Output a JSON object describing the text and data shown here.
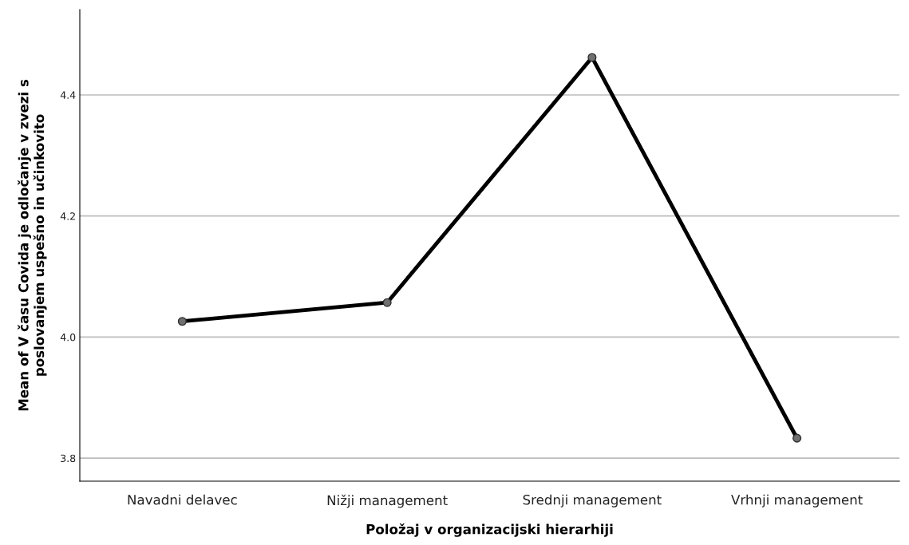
{
  "chart_data": {
    "type": "line",
    "xlabel": "Položaj v organizacijski hierarhiji",
    "ylabel": "Mean of V času Covida je odločanje v zvezi s\nposlovanjem uspešno in učinkovito",
    "categories": [
      "Navadni delavec",
      "Nižji management",
      "Srednji management",
      "Vrhnji management"
    ],
    "series": [
      {
        "color": "#000000",
        "values": [
          4.026,
          4.057,
          4.462,
          3.833
        ]
      }
    ],
    "ylim": [
      3.762,
      4.541
    ],
    "yticks": [
      {
        "value": 3.8,
        "label": "3.8"
      },
      {
        "value": 4.0,
        "label": "4.0"
      },
      {
        "value": 4.2,
        "label": "4.2"
      },
      {
        "value": 4.4,
        "label": "4.4"
      }
    ],
    "grid": "y",
    "marker": "circle",
    "line_style": "solid",
    "legend": false
  }
}
